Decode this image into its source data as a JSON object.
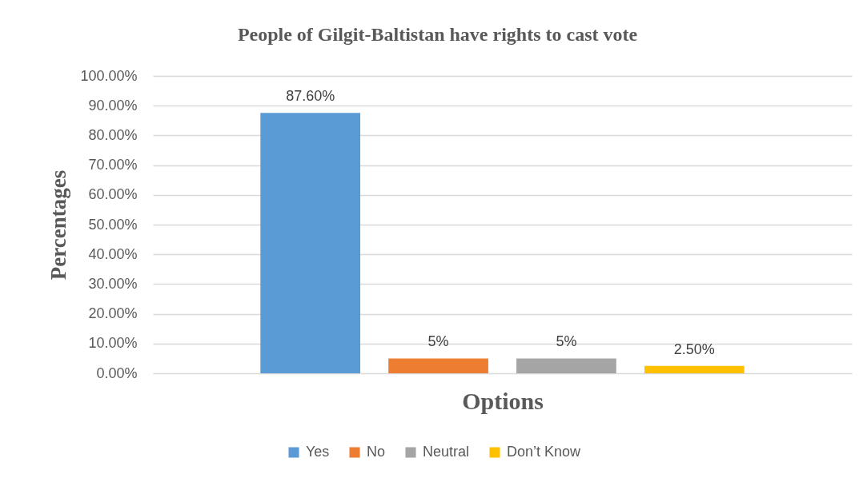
{
  "chart_data": {
    "type": "bar",
    "title": "People of Gilgit-Baltistan have rights to cast vote",
    "xlabel": "Options",
    "ylabel": "Percentages",
    "categories": [
      null
    ],
    "series": [
      {
        "name": "Yes",
        "color": "#5b9bd5",
        "values": [
          87.6
        ],
        "value_labels": [
          "87.60%"
        ]
      },
      {
        "name": "No",
        "color": "#ed7d31",
        "values": [
          5
        ],
        "value_labels": [
          "5%"
        ]
      },
      {
        "name": "Neutral",
        "color": "#a5a5a5",
        "values": [
          5
        ],
        "value_labels": [
          "5%"
        ]
      },
      {
        "name": "Don’t Know",
        "color": "#ffc000",
        "values": [
          2.5
        ],
        "value_labels": [
          "2.50%"
        ]
      }
    ],
    "ylim": [
      0,
      100
    ],
    "yticks": [
      {
        "value": 0,
        "label": "0.00%"
      },
      {
        "value": 10,
        "label": "10.00%"
      },
      {
        "value": 20,
        "label": "20.00%"
      },
      {
        "value": 30,
        "label": "30.00%"
      },
      {
        "value": 40,
        "label": "40.00%"
      },
      {
        "value": 50,
        "label": "50.00%"
      },
      {
        "value": 60,
        "label": "60.00%"
      },
      {
        "value": 70,
        "label": "70.00%"
      },
      {
        "value": 80,
        "label": "80.00%"
      },
      {
        "value": 90,
        "label": "90.00%"
      },
      {
        "value": 100,
        "label": "100.00%"
      }
    ],
    "grid": "y",
    "legend": "bottom"
  }
}
